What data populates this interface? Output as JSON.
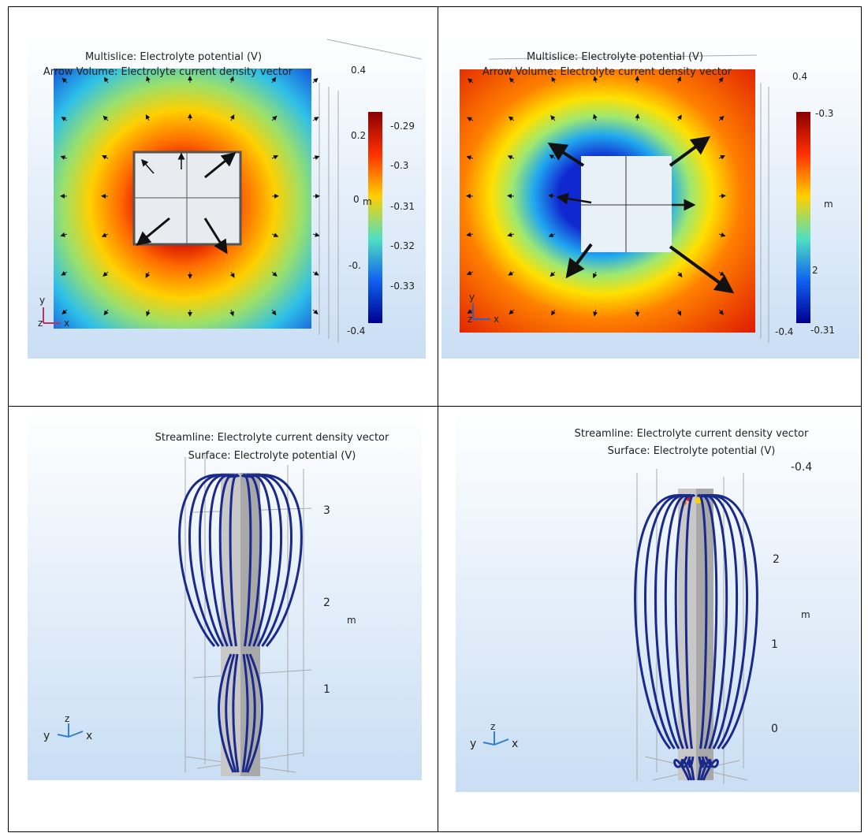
{
  "panels": [
    {
      "titles": [
        "Multislice: Electrolyte potential (V)",
        "Arrow Volume: Electrolyte current density vector"
      ],
      "axis_ticks": [
        "0.4",
        "0.2",
        "0",
        "-0.",
        "-0.4"
      ],
      "unit": "m",
      "colorbar_ticks": [
        "-0.29",
        "-0.3",
        "-0.31",
        "-0.32",
        "-0.33"
      ],
      "triad": [
        "y",
        "z",
        "x"
      ]
    },
    {
      "titles": [
        "Multislice: Electrolyte potential (V)",
        "Arrow Volume: Electrolyte current density vector"
      ],
      "axis_ticks": [
        "0.4",
        "-0.4"
      ],
      "unit": "m",
      "colorbar_ticks": [
        "-0.3",
        "2",
        "-0.31"
      ],
      "triad": [
        "y",
        "z",
        "x"
      ]
    },
    {
      "titles": [
        "Streamline: Electrolyte current density vector",
        "Surface: Electrolyte potential (V)"
      ],
      "axis_ticks": [
        "3",
        "2",
        "1"
      ],
      "unit": "m",
      "triad": [
        "y",
        "z",
        "x"
      ]
    },
    {
      "titles": [
        "Streamline: Electrolyte current density vector",
        "Surface: Electrolyte potential (V)"
      ],
      "axis_ticks": [
        "-0.4",
        "2",
        "1",
        "0"
      ],
      "unit": "m",
      "triad": [
        "y",
        "z",
        "x"
      ]
    }
  ]
}
